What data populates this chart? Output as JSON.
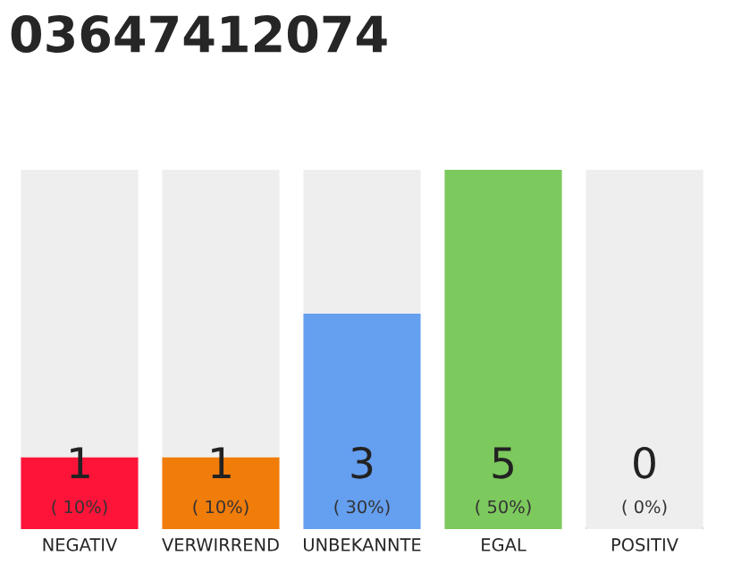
{
  "chart_data": {
    "type": "bar",
    "title": "03647412074",
    "stacked": true,
    "ylim": [
      0,
      5
    ],
    "categories": [
      "NEGATIV",
      "VERWIRREND",
      "UNBEKANNTE",
      "EGAL",
      "POSITIV"
    ],
    "series": [
      {
        "colors": [
          "#ff1439",
          "#f07c0a",
          "#659ff0",
          "#7cc95d",
          "#2ca02c"
        ],
        "values": [
          1,
          1,
          3,
          5,
          0
        ],
        "value_labels": [
          "1\n( 10%)",
          "1\n( 10%)",
          "3\n( 30%)",
          "5\n( 50%)",
          "0\n( 0%)"
        ]
      },
      {
        "color": "#eeeeee",
        "values": [
          4,
          4,
          2,
          0,
          5
        ]
      }
    ]
  }
}
